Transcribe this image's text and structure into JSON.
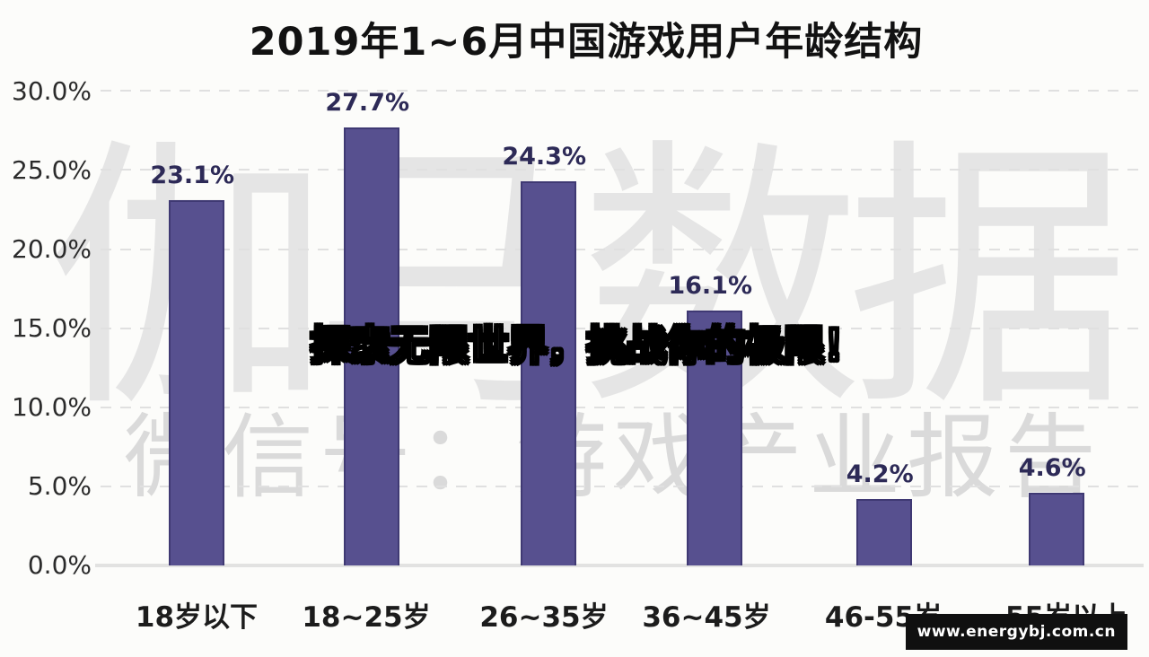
{
  "overlay": {
    "caption": "探索无限世界，挑战你的极限！"
  },
  "watermarks": {
    "brand": "伽马数据",
    "wechat_line": "微信号：游戏产业报告"
  },
  "footer": {
    "website": "www.energybj.com.cn"
  },
  "colors": {
    "bar_fill": "#57508f",
    "bar_border": "#3f3973",
    "value_label": "#2d2a57",
    "watermark": "#e5e5e5",
    "background": "#fcfcfa"
  },
  "chart_data": {
    "type": "bar",
    "title": "2019年1~6月中国游戏用户年龄结构",
    "categories": [
      "18岁以下",
      "18~25岁",
      "26~35岁",
      "36~45岁",
      "46-55岁",
      "55岁以上"
    ],
    "values": [
      23.1,
      27.7,
      24.3,
      16.1,
      4.2,
      4.6
    ],
    "value_labels": [
      "23.1%",
      "27.7%",
      "24.3%",
      "16.1%",
      "4.2%",
      "4.6%"
    ],
    "yticks": [
      "30.0%",
      "25.0%",
      "20.0%",
      "15.0%",
      "10.0%",
      "5.0%",
      "0.0%"
    ],
    "xlabel": "",
    "ylabel": "",
    "ylim": [
      0,
      30
    ],
    "grid": "dashed horizontal, every 5%",
    "legend": "none"
  }
}
